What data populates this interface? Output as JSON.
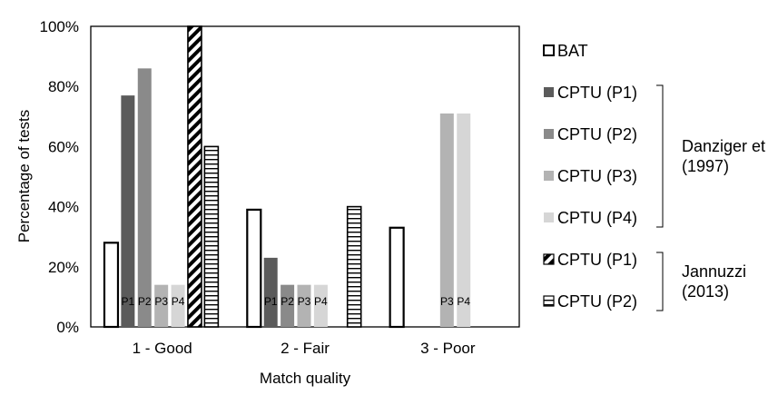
{
  "chart_data": {
    "type": "bar",
    "xlabel": "Match quality",
    "ylabel": "Percentage of tests",
    "ylim": [
      0,
      100
    ],
    "yticks": [
      "0%",
      "20%",
      "40%",
      "60%",
      "80%",
      "100%"
    ],
    "categories": [
      "1 - Good",
      "2 - Fair",
      "3 - Poor"
    ],
    "grid": false,
    "legend_position": "right",
    "series": [
      {
        "name": "BAT",
        "pattern": "outline",
        "color": "#000000",
        "values": [
          28,
          39,
          33
        ],
        "labels": [
          "",
          "",
          ""
        ]
      },
      {
        "name": "CPTU (P1)",
        "pattern": "solid",
        "color": "#5b5b5b",
        "values": [
          77,
          23,
          0
        ],
        "labels": [
          "P1",
          "P1",
          ""
        ]
      },
      {
        "name": "CPTU (P2)",
        "pattern": "solid",
        "color": "#8a8a8a",
        "values": [
          86,
          14,
          0
        ],
        "labels": [
          "P2",
          "P2",
          ""
        ]
      },
      {
        "name": "CPTU (P3)",
        "pattern": "solid",
        "color": "#b3b3b3",
        "values": [
          14,
          14,
          71
        ],
        "labels": [
          "P3",
          "P3",
          "P3"
        ]
      },
      {
        "name": "CPTU (P4)",
        "pattern": "solid",
        "color": "#d6d6d6",
        "values": [
          14,
          14,
          71
        ],
        "labels": [
          "P4",
          "P4",
          "P4"
        ]
      },
      {
        "name": "CPTU (P1)",
        "pattern": "diagonal",
        "color": "#000000",
        "values": [
          100,
          0,
          0
        ],
        "labels": [
          "",
          "",
          ""
        ]
      },
      {
        "name": "CPTU (P2)",
        "pattern": "horizontal",
        "color": "#000000",
        "values": [
          60,
          40,
          0
        ],
        "labels": [
          "",
          "",
          ""
        ]
      }
    ],
    "groups": [
      {
        "label": "Danziger et al. (1997)",
        "series": [
          1,
          2,
          3,
          4
        ]
      },
      {
        "label": "Jannuzzi (2013)",
        "series": [
          5,
          6
        ]
      }
    ]
  }
}
